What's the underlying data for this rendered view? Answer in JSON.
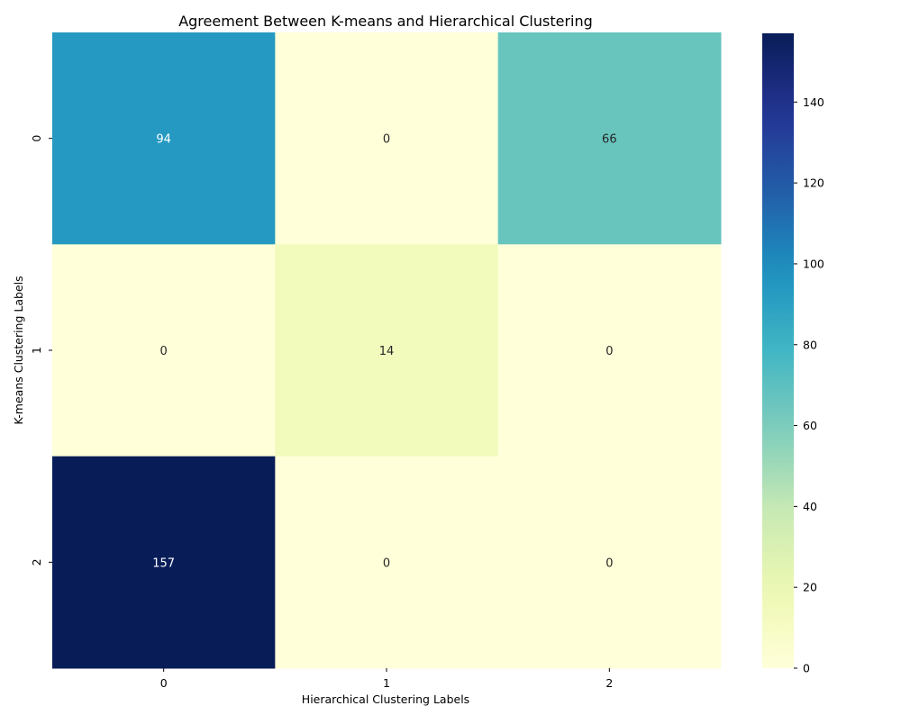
{
  "chart_data": {
    "type": "heatmap",
    "title": "Agreement Between K-means and Hierarchical Clustering",
    "xlabel": "Hierarchical Clustering Labels",
    "ylabel": "K-means Clustering Labels",
    "x_categories": [
      "0",
      "1",
      "2"
    ],
    "y_categories": [
      "0",
      "1",
      "2"
    ],
    "values": [
      [
        94,
        0,
        66
      ],
      [
        0,
        14,
        0
      ],
      [
        157,
        0,
        0
      ]
    ],
    "colormap": "YlGnBu",
    "vmin": 0,
    "vmax": 157,
    "colorbar_ticks": [
      0,
      20,
      40,
      60,
      80,
      100,
      120,
      140
    ],
    "annotations": true
  }
}
